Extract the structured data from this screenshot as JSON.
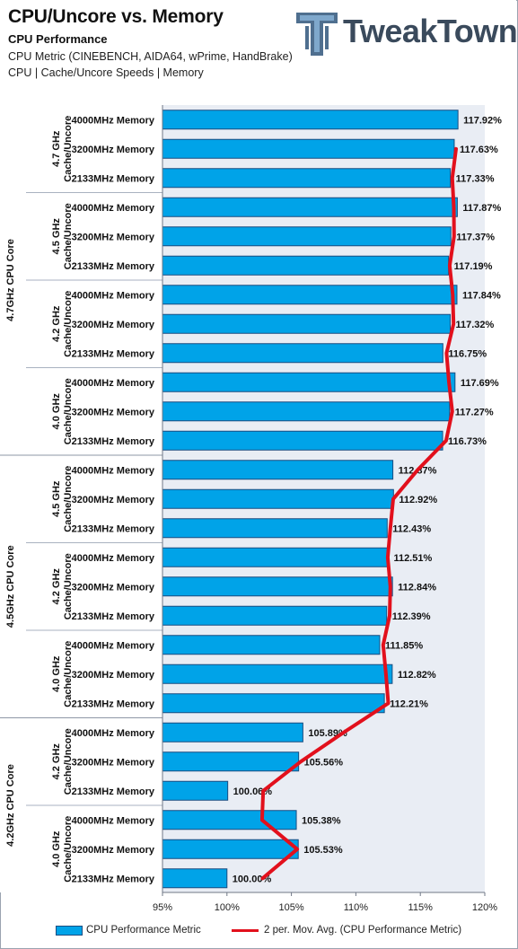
{
  "header": {
    "title": "CPU/Uncore vs. Memory",
    "subtitle": "CPU Performance",
    "metric_line": "CPU Metric (CINEBENCH, AIDA64, wPrime, HandBrake)",
    "category_line": "CPU | Cache/Uncore Speeds | Memory",
    "logo_text": "TweakTown"
  },
  "colors": {
    "bar_fill": "#00a3e8",
    "bar_stroke": "#1a4d80",
    "line": "#e2101c",
    "plot_bg": "#e9edf4"
  },
  "chart_data": {
    "type": "bar",
    "orientation": "horizontal",
    "xlim": [
      95,
      120
    ],
    "x_ticks": [
      "95%",
      "100%",
      "105%",
      "110%",
      "115%",
      "120%"
    ],
    "grid": false,
    "legend_position": "bottom",
    "groups": [
      {
        "cpu_label": "4.7GHz CPU Core",
        "cache_groups": [
          {
            "label": "4.7 GHz Cache/Uncore",
            "rows": [
              {
                "memory": "4000MHz Memory",
                "value": 117.92,
                "label": "117.92%"
              },
              {
                "memory": "3200MHz Memory",
                "value": 117.63,
                "label": "117.63%"
              },
              {
                "memory": "2133MHz Memory",
                "value": 117.33,
                "label": "117.33%"
              }
            ]
          },
          {
            "label": "4.5 GHz Cache/Uncore",
            "rows": [
              {
                "memory": "4000MHz Memory",
                "value": 117.87,
                "label": "117.87%"
              },
              {
                "memory": "3200MHz Memory",
                "value": 117.37,
                "label": "117.37%"
              },
              {
                "memory": "2133MHz Memory",
                "value": 117.19,
                "label": "117.19%"
              }
            ]
          },
          {
            "label": "4.2 GHz Cache/Uncore",
            "rows": [
              {
                "memory": "4000MHz Memory",
                "value": 117.84,
                "label": "117.84%"
              },
              {
                "memory": "3200MHz Memory",
                "value": 117.32,
                "label": "117.32%"
              },
              {
                "memory": "2133MHz Memory",
                "value": 116.75,
                "label": "116.75%"
              }
            ]
          },
          {
            "label": "4.0 GHz Cache/Uncore",
            "rows": [
              {
                "memory": "4000MHz Memory",
                "value": 117.69,
                "label": "117.69%"
              },
              {
                "memory": "3200MHz Memory",
                "value": 117.27,
                "label": "117.27%"
              },
              {
                "memory": "2133MHz Memory",
                "value": 116.73,
                "label": "116.73%"
              }
            ]
          }
        ]
      },
      {
        "cpu_label": "4.5GHz CPU Core",
        "cache_groups": [
          {
            "label": "4.5 GHz Cache/Uncore",
            "rows": [
              {
                "memory": "4000MHz Memory",
                "value": 112.87,
                "label": "112.87%"
              },
              {
                "memory": "3200MHz Memory",
                "value": 112.92,
                "label": "112.92%"
              },
              {
                "memory": "2133MHz Memory",
                "value": 112.43,
                "label": "112.43%"
              }
            ]
          },
          {
            "label": "4.2 GHz Cache/Uncore",
            "rows": [
              {
                "memory": "4000MHz Memory",
                "value": 112.51,
                "label": "112.51%"
              },
              {
                "memory": "3200MHz Memory",
                "value": 112.84,
                "label": "112.84%"
              },
              {
                "memory": "2133MHz Memory",
                "value": 112.39,
                "label": "112.39%"
              }
            ]
          },
          {
            "label": "4.0 GHz Cache/Uncore",
            "rows": [
              {
                "memory": "4000MHz Memory",
                "value": 111.85,
                "label": "111.85%"
              },
              {
                "memory": "3200MHz Memory",
                "value": 112.82,
                "label": "112.82%"
              },
              {
                "memory": "2133MHz Memory",
                "value": 112.21,
                "label": "112.21%"
              }
            ]
          }
        ]
      },
      {
        "cpu_label": "4.2GHz CPU Core",
        "cache_groups": [
          {
            "label": "4.2 GHz Cache/Uncore",
            "rows": [
              {
                "memory": "4000MHz Memory",
                "value": 105.89,
                "label": "105.89%"
              },
              {
                "memory": "3200MHz Memory",
                "value": 105.56,
                "label": "105.56%"
              },
              {
                "memory": "2133MHz Memory",
                "value": 100.06,
                "label": "100.06%"
              }
            ]
          },
          {
            "label": "4.0 GHz Cache/Uncore",
            "rows": [
              {
                "memory": "4000MHz Memory",
                "value": 105.38,
                "label": "105.38%"
              },
              {
                "memory": "3200MHz Memory",
                "value": 105.53,
                "label": "105.53%"
              },
              {
                "memory": "2133MHz Memory",
                "value": 100.0,
                "label": "100.00%"
              }
            ]
          }
        ]
      }
    ],
    "series": [
      {
        "name": "CPU Performance Metric",
        "kind": "bar"
      },
      {
        "name": "2 per. Mov. Avg. (CPU Performance Metric)",
        "kind": "line",
        "method": "2-period moving average"
      }
    ]
  }
}
